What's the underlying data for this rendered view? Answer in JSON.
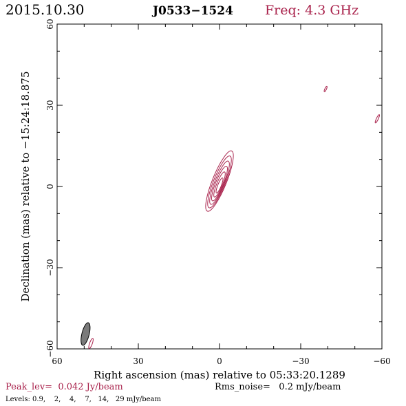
{
  "header": {
    "date": "2015.10.30",
    "source": "J0533−1524",
    "frequency": "Freq: 4.3 GHz"
  },
  "footer": {
    "peak": "Peak_lev=  0.042 Jy/beam",
    "rms": "Rms_noise=   0.2 mJy/beam",
    "levels": "Levels: 0.9,    2,    4,    7,   14,   29 mJy/beam"
  },
  "colors": {
    "contour": "#a8204a",
    "beam_fill": "#7a7a7a",
    "axes": "#000000"
  },
  "chart_data": {
    "type": "contour",
    "xlabel": "Right ascension (mas) relative to 05:33:20.1289",
    "ylabel": "Declination (mas) relative to −15:24:18.875",
    "xlim": [
      60,
      -60
    ],
    "ylim": [
      -60,
      60
    ],
    "x_ticks": [
      {
        "value": 60,
        "label": "60"
      },
      {
        "value": 30,
        "label": "30"
      },
      {
        "value": 0,
        "label": "0"
      },
      {
        "value": -30,
        "label": "−30"
      },
      {
        "value": -60,
        "label": "−60"
      }
    ],
    "y_ticks": [
      {
        "value": 60,
        "label": "60"
      },
      {
        "value": 30,
        "label": "30"
      },
      {
        "value": 0,
        "label": "0"
      },
      {
        "value": -30,
        "label": "−30"
      },
      {
        "value": -60,
        "label": "−60"
      }
    ],
    "contour_levels_mJy": [
      0.9,
      2,
      4,
      7,
      14,
      29
    ],
    "peak_Jy_per_beam": 0.042,
    "rms_noise_mJy_per_beam": 0.2,
    "main_component": {
      "center_x_mas": 0,
      "center_y_mas": 2,
      "position_angle_deg": 22,
      "contours": [
        {
          "level": 0.9,
          "semi_major_mas": 12.0,
          "semi_minor_mas": 2.6
        },
        {
          "level": 2,
          "semi_major_mas": 10.3,
          "semi_minor_mas": 2.2
        },
        {
          "level": 4,
          "semi_major_mas": 8.6,
          "semi_minor_mas": 1.8
        },
        {
          "level": 7,
          "semi_major_mas": 6.9,
          "semi_minor_mas": 1.45
        },
        {
          "level": 14,
          "semi_major_mas": 5.0,
          "semi_minor_mas": 1.05
        },
        {
          "level": 29,
          "semi_major_mas": 3.0,
          "semi_minor_mas": 0.65
        }
      ]
    },
    "noise_blobs": [
      {
        "x_mas": -39.2,
        "y_mas": 36.0,
        "semi_major_mas": 1.1,
        "semi_minor_mas": 0.3,
        "position_angle_deg": 25
      },
      {
        "x_mas": -58.3,
        "y_mas": 25.0,
        "semi_major_mas": 1.7,
        "semi_minor_mas": 0.35,
        "position_angle_deg": 25
      },
      {
        "x_mas": 47.5,
        "y_mas": -58.0,
        "semi_major_mas": 2.0,
        "semi_minor_mas": 0.5,
        "position_angle_deg": 20
      }
    ],
    "beam": {
      "x_mas": 49.5,
      "y_mas": -54.5,
      "major_mas": 8.6,
      "minor_mas": 2.7,
      "position_angle_deg": 14
    }
  }
}
